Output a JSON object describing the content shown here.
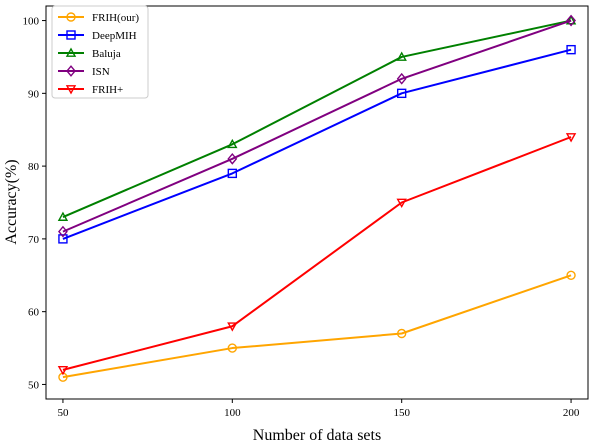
{
  "chart_data": {
    "type": "line",
    "title": "",
    "xlabel": "Number of data sets",
    "ylabel": "Accuracy(%)",
    "x": [
      50,
      100,
      150,
      200
    ],
    "xticks": [
      "50",
      "100",
      "150",
      "200"
    ],
    "yticks": [
      "50",
      "60",
      "70",
      "80",
      "90",
      "100"
    ],
    "xlim": [
      45,
      205
    ],
    "ylim": [
      48,
      102
    ],
    "grid": false,
    "legend_position": "top-left",
    "series": [
      {
        "name": "FRIH(our)",
        "color": "#ffa500",
        "marker": "circle",
        "values": [
          51,
          55,
          57,
          65
        ]
      },
      {
        "name": "DeepMIH",
        "color": "#0000ff",
        "marker": "square",
        "values": [
          70,
          79,
          90,
          96
        ]
      },
      {
        "name": "Baluja",
        "color": "#008000",
        "marker": "triangle-up",
        "values": [
          73,
          83,
          95,
          100
        ]
      },
      {
        "name": "ISN",
        "color": "#800080",
        "marker": "diamond",
        "values": [
          71,
          81,
          92,
          100
        ]
      },
      {
        "name": "FRIH+",
        "color": "#ff0000",
        "marker": "triangle-down",
        "values": [
          52,
          58,
          75,
          84
        ]
      }
    ]
  }
}
